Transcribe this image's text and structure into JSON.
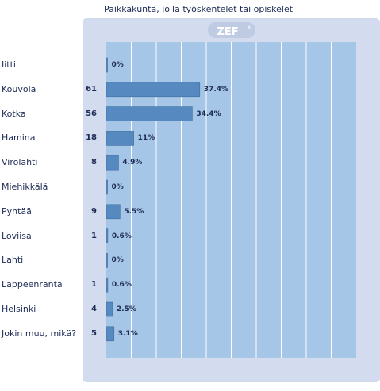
{
  "chart_data": {
    "type": "bar",
    "orientation": "horizontal",
    "title": "Paikkakunta, jolla työskentelet tai opiskelet",
    "logo_text": "ZEF",
    "categories": [
      "Iitti",
      "Kouvola",
      "Kotka",
      "Hamina",
      "Virolahti",
      "Miehikkälä",
      "Pyhtää",
      "Loviisa",
      "Lahti",
      "Lappeenranta",
      "Helsinki",
      "Jokin muu, mikä?"
    ],
    "counts": [
      "",
      "61",
      "56",
      "18",
      "8",
      "",
      "9",
      "1",
      "",
      "1",
      "4",
      "5"
    ],
    "values": [
      0,
      37.4,
      34.4,
      11,
      4.9,
      0,
      5.5,
      0.6,
      0,
      0.6,
      2.5,
      3.1
    ],
    "value_labels": [
      "0%",
      "37.4%",
      "34.4%",
      "11%",
      "4.9%",
      "0%",
      "5.5%",
      "0.6%",
      "0%",
      "0.6%",
      "2.5%",
      "3.1%"
    ],
    "xlim": [
      0,
      100
    ],
    "grid": true,
    "colors": {
      "frame": "#d3dbee",
      "plot_bg": "#a5c6e6",
      "grid": "#ffffff",
      "bar": "#5689bf",
      "bar_edge": "#3f6f9f",
      "text": "#1d2b55",
      "logo": "#bfcbe3"
    }
  }
}
